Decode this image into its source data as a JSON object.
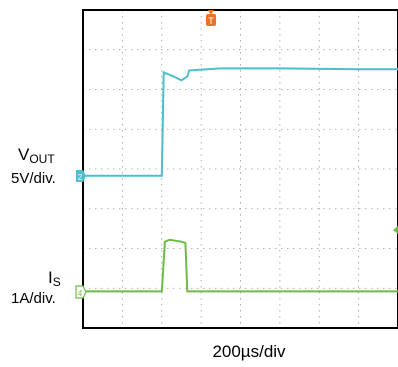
{
  "chart_data": {
    "type": "line",
    "title": "",
    "trigger_marker": "T",
    "timebase": "200µs/div",
    "grid": true,
    "colors": {
      "vout": "#4dbfcc",
      "is": "#6cbd45",
      "trigger": "#e8742a",
      "grid": "#9a9a9a",
      "frame": "#000000"
    },
    "channels": [
      {
        "id": "2",
        "name_main": "V",
        "name_sub": "OUT",
        "scale": "5V/div.",
        "icon": "channel-2-ground-marker",
        "points": [
          [
            0.0,
            0.0
          ],
          [
            2.0,
            0.0
          ],
          [
            2.05,
            2.6
          ],
          [
            2.3,
            2.5
          ],
          [
            2.5,
            2.4
          ],
          [
            2.65,
            2.5
          ],
          [
            2.7,
            2.65
          ],
          [
            3.5,
            2.7
          ],
          [
            5.0,
            2.7
          ],
          [
            7.0,
            2.68
          ],
          [
            8.0,
            2.68
          ]
        ]
      },
      {
        "id": "4",
        "name_main": "I",
        "name_sub": "S",
        "scale": "1A/div.",
        "icon": "channel-4-ground-marker",
        "points": [
          [
            0.0,
            0.0
          ],
          [
            2.0,
            0.0
          ],
          [
            2.08,
            1.25
          ],
          [
            2.2,
            1.3
          ],
          [
            2.5,
            1.25
          ],
          [
            2.6,
            1.22
          ],
          [
            2.65,
            0.0
          ],
          [
            5.0,
            0.0
          ],
          [
            8.0,
            0.0
          ]
        ]
      }
    ],
    "x_divisions": 8,
    "y_divisions": 8,
    "trigger_division": 2.0
  }
}
